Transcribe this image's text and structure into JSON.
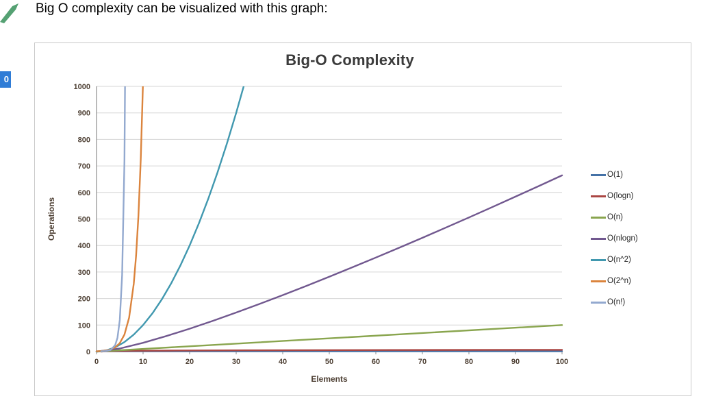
{
  "page": {
    "header_text": "Big O complexity can be visualized with this graph:",
    "badge_value": "0",
    "badge_color": "#2f7cd6",
    "arrow_icon_color": "#55a173"
  },
  "chart_data": {
    "type": "line",
    "title": "Big-O Complexity",
    "xlabel": "Elements",
    "ylabel": "Operations",
    "xlim": [
      0,
      100
    ],
    "ylim": [
      0,
      1000
    ],
    "xticks": [
      0,
      10,
      20,
      30,
      40,
      50,
      60,
      70,
      80,
      90,
      100
    ],
    "yticks": [
      0,
      100,
      200,
      300,
      400,
      500,
      600,
      700,
      800,
      900,
      1000
    ],
    "grid": "horizontal",
    "legend_position": "right",
    "series": [
      {
        "name": "O(1)",
        "color": "#4572A7",
        "points": [
          [
            0,
            1
          ],
          [
            100,
            1
          ]
        ]
      },
      {
        "name": "O(logn)",
        "color": "#AA4643",
        "points": [
          [
            1,
            0
          ],
          [
            2,
            1
          ],
          [
            4,
            2
          ],
          [
            8,
            3
          ],
          [
            16,
            4
          ],
          [
            32,
            5
          ],
          [
            64,
            6
          ],
          [
            100,
            6.64
          ]
        ]
      },
      {
        "name": "O(n)",
        "color": "#89A54E",
        "points": [
          [
            0,
            0
          ],
          [
            100,
            100
          ]
        ]
      },
      {
        "name": "O(nlogn)",
        "color": "#71588F",
        "points": [
          [
            0,
            0
          ],
          [
            5,
            11.6
          ],
          [
            10,
            33.2
          ],
          [
            15,
            58.6
          ],
          [
            20,
            86.4
          ],
          [
            25,
            116.1
          ],
          [
            30,
            147.2
          ],
          [
            35,
            179.5
          ],
          [
            40,
            212.9
          ],
          [
            45,
            247.1
          ],
          [
            50,
            282.2
          ],
          [
            55,
            318.0
          ],
          [
            60,
            354.4
          ],
          [
            65,
            391.5
          ],
          [
            70,
            429.0
          ],
          [
            75,
            467.2
          ],
          [
            80,
            505.8
          ],
          [
            85,
            544.8
          ],
          [
            90,
            584.3
          ],
          [
            95,
            624.1
          ],
          [
            100,
            664.4
          ]
        ]
      },
      {
        "name": "O(n^2)",
        "color": "#4198AF",
        "points": [
          [
            0,
            0
          ],
          [
            2,
            4
          ],
          [
            4,
            16
          ],
          [
            6,
            36
          ],
          [
            8,
            64
          ],
          [
            10,
            100
          ],
          [
            12,
            144
          ],
          [
            14,
            196
          ],
          [
            16,
            256
          ],
          [
            18,
            324
          ],
          [
            20,
            400
          ],
          [
            22,
            484
          ],
          [
            24,
            576
          ],
          [
            26,
            676
          ],
          [
            28,
            784
          ],
          [
            30,
            900
          ],
          [
            32,
            1024
          ]
        ]
      },
      {
        "name": "O(2^n)",
        "color": "#DB843D",
        "points": [
          [
            0,
            1
          ],
          [
            1,
            2
          ],
          [
            2,
            4
          ],
          [
            3,
            8
          ],
          [
            4,
            16
          ],
          [
            5,
            32
          ],
          [
            6,
            64
          ],
          [
            7,
            128
          ],
          [
            8,
            256
          ],
          [
            8.5,
            362
          ],
          [
            9,
            512
          ],
          [
            9.5,
            724
          ],
          [
            10,
            1024
          ]
        ]
      },
      {
        "name": "O(n!)",
        "color": "#93A9CF",
        "points": [
          [
            1,
            1
          ],
          [
            2,
            2
          ],
          [
            3,
            6
          ],
          [
            4,
            24
          ],
          [
            4.5,
            52
          ],
          [
            5,
            120
          ],
          [
            5.5,
            288
          ],
          [
            6,
            720
          ],
          [
            6.5,
            1871
          ]
        ]
      }
    ]
  }
}
